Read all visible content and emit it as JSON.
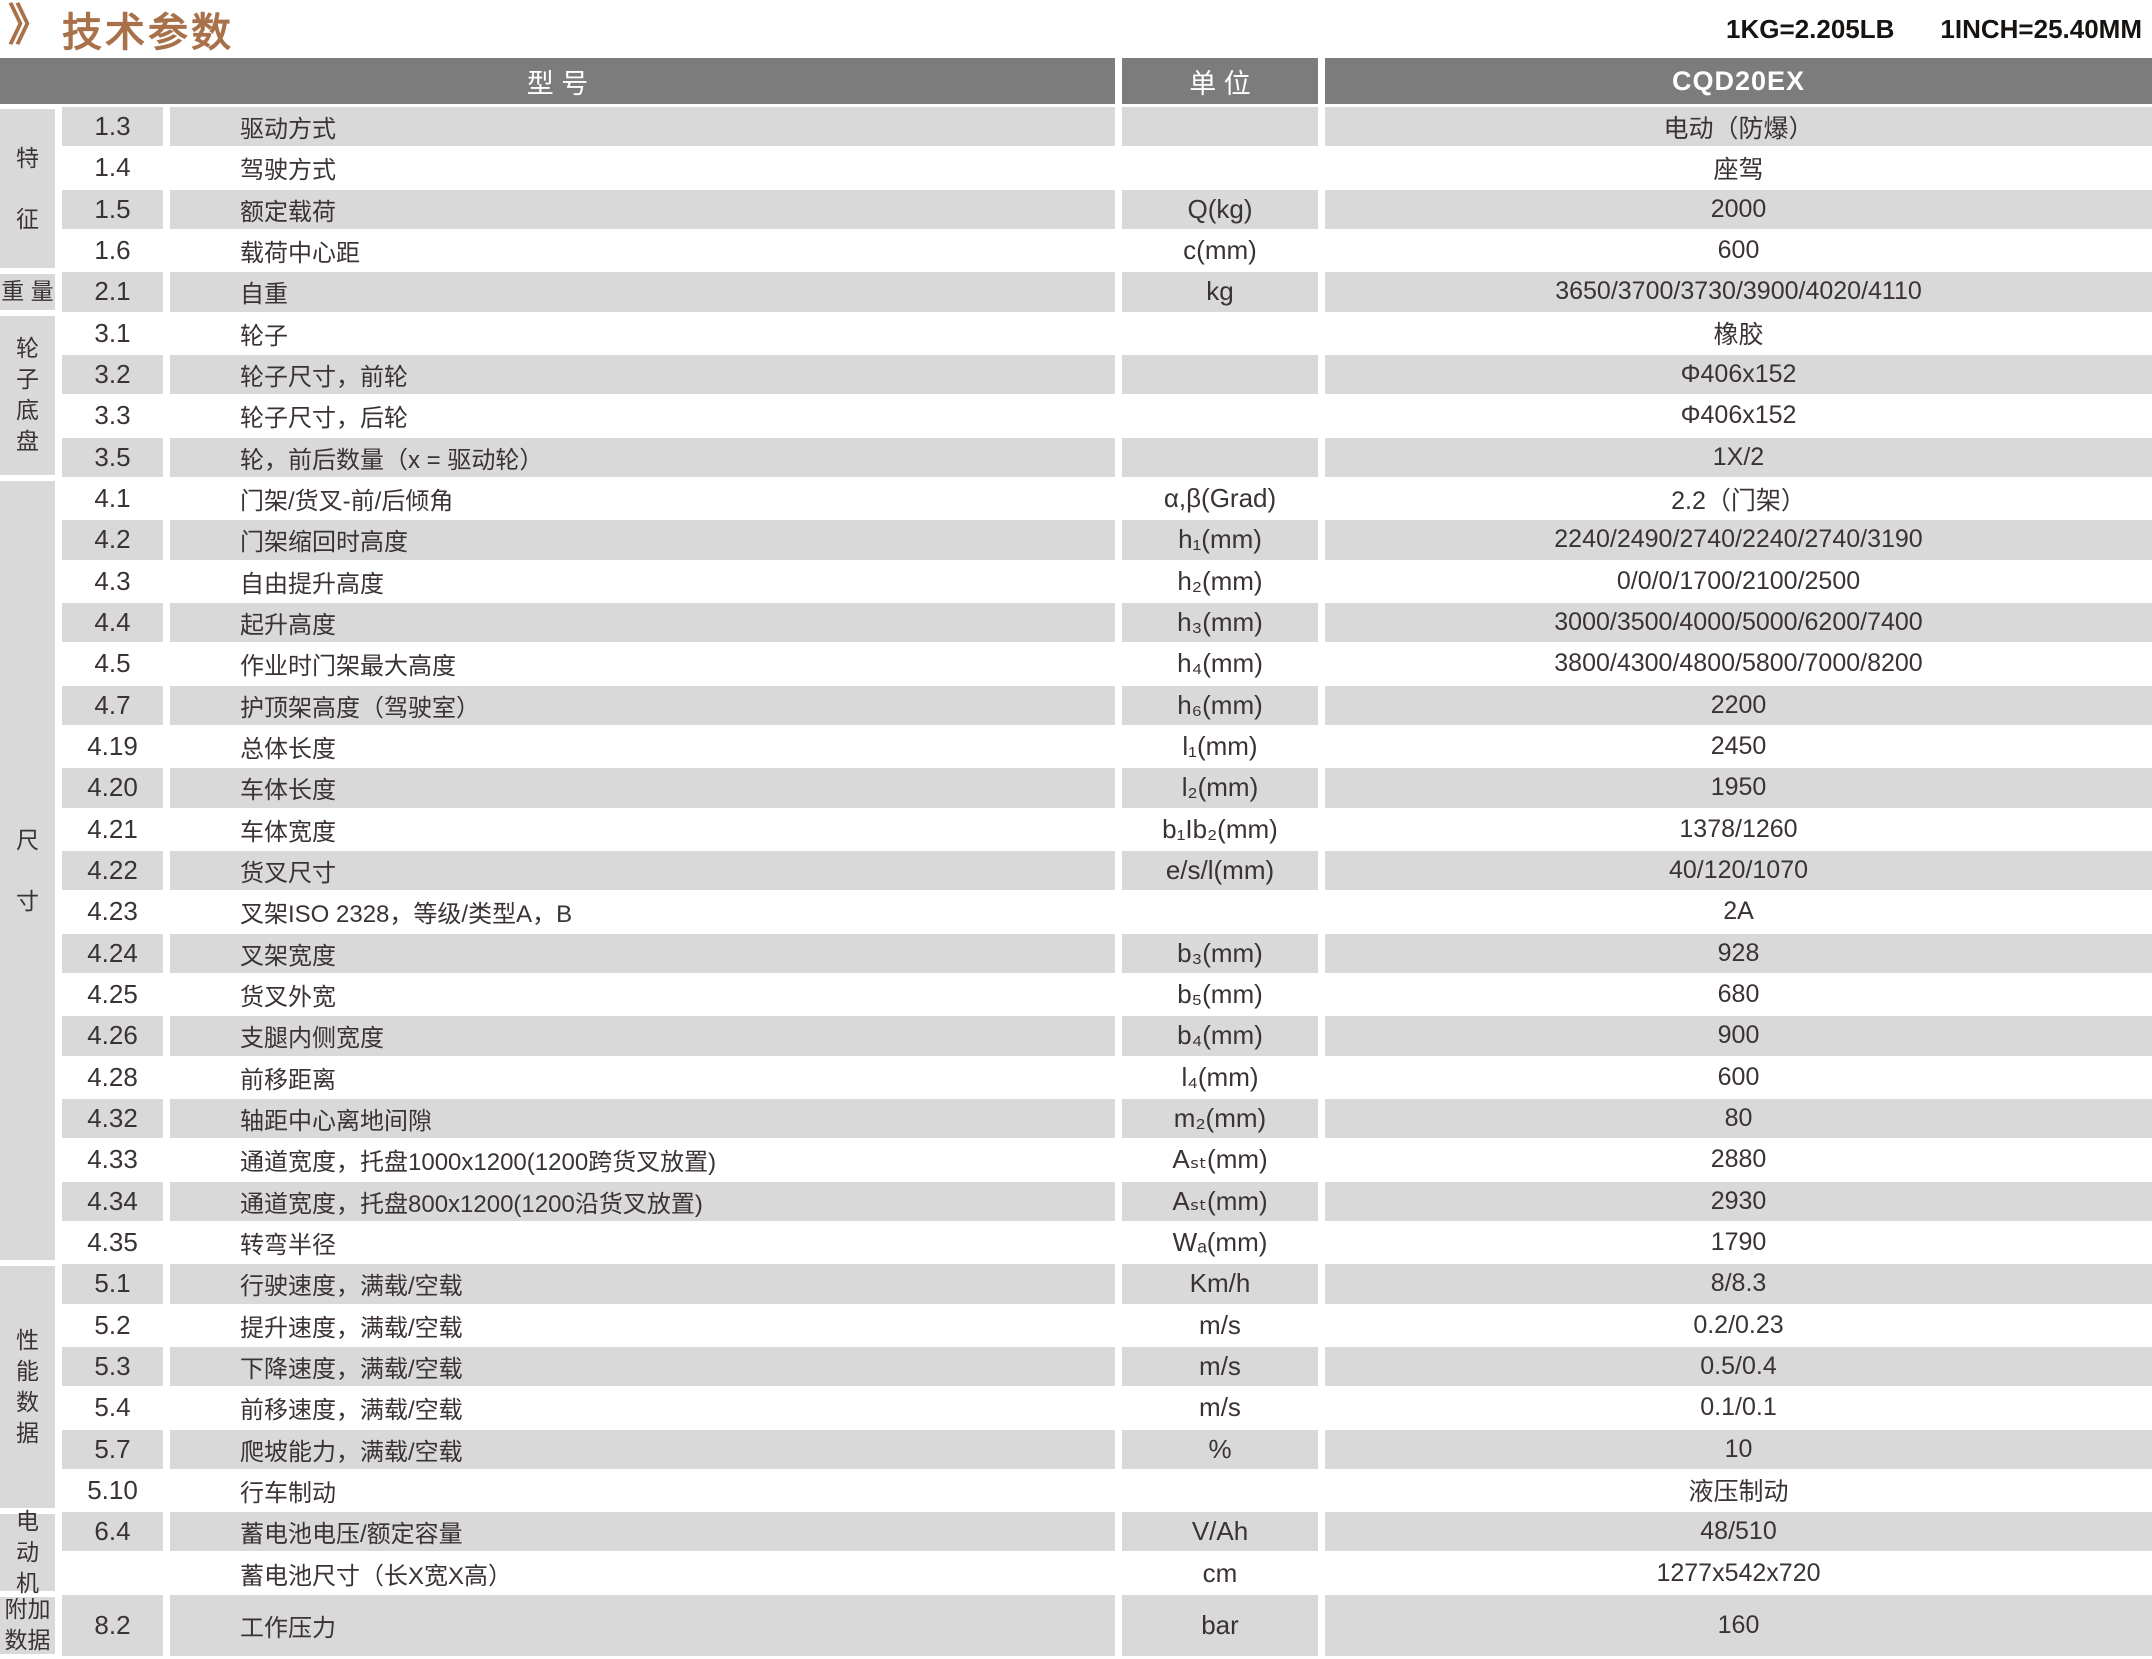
{
  "page": {
    "title": "技术参数",
    "title_marker": "》",
    "conversion_note_1": "1KG=2.205LB",
    "conversion_note_2": "1INCH=25.40MM"
  },
  "colors": {
    "accent_brown": "#a8714a",
    "header_bg": "#7c7c7c",
    "stripe_bg": "#d9d9d9",
    "text": "#3a3233"
  },
  "table": {
    "headers": {
      "model": "型 号",
      "unit": "单 位",
      "value": "CQD20EX"
    },
    "sections": [
      {
        "category": "特征",
        "category_lines": [
          "特",
          "征"
        ],
        "spread": true,
        "rows": [
          {
            "code": "1.3",
            "desc": "驱动方式",
            "unit": "",
            "value": "电动（防爆）"
          },
          {
            "code": "1.4",
            "desc": "驾驶方式",
            "unit": "",
            "value": "座驾"
          },
          {
            "code": "1.5",
            "desc": "额定载荷",
            "unit": "Q(kg)",
            "value": "2000"
          },
          {
            "code": "1.6",
            "desc": "载荷中心距",
            "unit": "c(mm)",
            "value": "600"
          }
        ]
      },
      {
        "category": "重量",
        "category_lines": [
          "重 量"
        ],
        "spread": false,
        "rows": [
          {
            "code": "2.1",
            "desc": "自重",
            "unit": "kg",
            "value": "3650/3700/3730/3900/4020/4110"
          }
        ]
      },
      {
        "category": "轮子底盘",
        "category_lines": [
          "轮",
          "子",
          "底",
          "盘"
        ],
        "spread": false,
        "rows": [
          {
            "code": "3.1",
            "desc": "轮子",
            "unit": "",
            "value": "橡胶"
          },
          {
            "code": "3.2",
            "desc": "轮子尺寸，前轮",
            "unit": "",
            "value": "Φ406x152"
          },
          {
            "code": "3.3",
            "desc": "轮子尺寸，后轮",
            "unit": "",
            "value": "Φ406x152"
          },
          {
            "code": "3.5",
            "desc": "轮，前后数量（x = 驱动轮）",
            "unit": "",
            "value": "1X/2"
          }
        ]
      },
      {
        "category": "尺寸",
        "category_lines": [
          "尺",
          "寸"
        ],
        "spread": true,
        "rows": [
          {
            "code": "4.1",
            "desc": "门架/货叉-前/后倾角",
            "unit": "α,β(Grad)",
            "value": "2.2（门架）"
          },
          {
            "code": "4.2",
            "desc": "门架缩回时高度",
            "unit": "h₁(mm)",
            "value": "2240/2490/2740/2240/2740/3190"
          },
          {
            "code": "4.3",
            "desc": "自由提升高度",
            "unit": "h₂(mm)",
            "value": "0/0/0/1700/2100/2500"
          },
          {
            "code": "4.4",
            "desc": "起升高度",
            "unit": "h₃(mm)",
            "value": "3000/3500/4000/5000/6200/7400"
          },
          {
            "code": "4.5",
            "desc": "作业时门架最大高度",
            "unit": "h₄(mm)",
            "value": "3800/4300/4800/5800/7000/8200"
          },
          {
            "code": "4.7",
            "desc": "护顶架高度（驾驶室）",
            "unit": "h₆(mm)",
            "value": "2200"
          },
          {
            "code": "4.19",
            "desc": "总体长度",
            "unit": "l₁(mm)",
            "value": "2450"
          },
          {
            "code": "4.20",
            "desc": "车体长度",
            "unit": "l₂(mm)",
            "value": "1950"
          },
          {
            "code": "4.21",
            "desc": "车体宽度",
            "unit": "b₁Ib₂(mm)",
            "value": "1378/1260"
          },
          {
            "code": "4.22",
            "desc": "货叉尺寸",
            "unit": "e/s/l(mm)",
            "value": "40/120/1070"
          },
          {
            "code": "4.23",
            "desc": "叉架ISO 2328，等级/类型A，B",
            "unit": "",
            "value": "2A"
          },
          {
            "code": "4.24",
            "desc": "叉架宽度",
            "unit": "b₃(mm)",
            "value": "928"
          },
          {
            "code": "4.25",
            "desc": "货叉外宽",
            "unit": "b₅(mm)",
            "value": "680"
          },
          {
            "code": "4.26",
            "desc": "支腿内侧宽度",
            "unit": "b₄(mm)",
            "value": "900"
          },
          {
            "code": "4.28",
            "desc": "前移距离",
            "unit": "l₄(mm)",
            "value": "600"
          },
          {
            "code": "4.32",
            "desc": "轴距中心离地间隙",
            "unit": "m₂(mm)",
            "value": "80"
          },
          {
            "code": "4.33",
            "desc": "通道宽度，托盘1000x1200(1200跨货叉放置)",
            "unit": "Aₛₜ(mm)",
            "value": "2880"
          },
          {
            "code": "4.34",
            "desc": "通道宽度，托盘800x1200(1200沿货叉放置)",
            "unit": "Aₛₜ(mm)",
            "value": "2930"
          },
          {
            "code": "4.35",
            "desc": "转弯半径",
            "unit": "Wₐ(mm)",
            "value": "1790"
          }
        ]
      },
      {
        "category": "性能数据",
        "category_lines": [
          "性",
          "能",
          "数",
          "据"
        ],
        "spread": false,
        "rows": [
          {
            "code": "5.1",
            "desc": "行驶速度，满载/空载",
            "unit": "Km/h",
            "value": "8/8.3"
          },
          {
            "code": "5.2",
            "desc": "提升速度，满载/空载",
            "unit": "m/s",
            "value": "0.2/0.23"
          },
          {
            "code": "5.3",
            "desc": "下降速度，满载/空载",
            "unit": "m/s",
            "value": "0.5/0.4"
          },
          {
            "code": "5.4",
            "desc": "前移速度，满载/空载",
            "unit": "m/s",
            "value": "0.1/0.1"
          },
          {
            "code": "5.7",
            "desc": "爬坡能力，满载/空载",
            "unit": "%",
            "value": "10"
          },
          {
            "code": "5.10",
            "desc": "行车制动",
            "unit": "",
            "value": "液压制动"
          }
        ]
      },
      {
        "category": "电动机",
        "category_lines": [
          "电",
          "动",
          "机"
        ],
        "spread": false,
        "rows": [
          {
            "code": "6.4",
            "desc": "蓄电池电压/额定容量",
            "unit": "V/Ah",
            "value": "48/510"
          },
          {
            "code": "",
            "desc": "蓄电池尺寸（长X宽X高）",
            "unit": "cm",
            "value": "1277x542x720"
          }
        ]
      },
      {
        "category": "附加数据",
        "category_lines": [
          "附加",
          "数据"
        ],
        "spread": false,
        "rows": [
          {
            "code": "8.2",
            "desc": "工作压力",
            "unit": "bar",
            "value": "160",
            "tall": true
          }
        ]
      }
    ]
  }
}
